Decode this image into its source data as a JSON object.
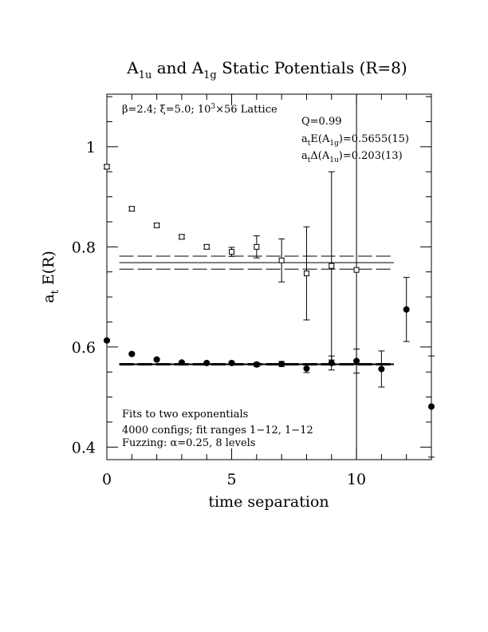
{
  "chart_data": {
    "type": "scatter",
    "title": "A1u and A1g Static Potentials (R=8)",
    "title_parts": {
      "a1": "A",
      "s1": "1u",
      "mid": " and A",
      "s2": "1g",
      "rest": " Static Potentials (R=8)"
    },
    "xlabel": "time separation",
    "ylabel": "a_t E(R)",
    "ylabel_parts": {
      "a": "a",
      "sub": "t",
      "rest": " E(R)"
    },
    "xlim": [
      0,
      13
    ],
    "ylim": [
      0.375,
      1.105
    ],
    "x_major_ticks": [
      0,
      5,
      10
    ],
    "x_tick_labels": [
      "0",
      "5",
      "10"
    ],
    "y_major_ticks": [
      0.4,
      0.6,
      0.8,
      1.0
    ],
    "y_tick_labels": [
      "0.4",
      "0.6",
      "0.8",
      "1"
    ],
    "grid": false,
    "legend": "none",
    "series": [
      {
        "marker": "open-square",
        "points": [
          {
            "x": 0,
            "y": 0.96,
            "err": 0.004
          },
          {
            "x": 1,
            "y": 0.876,
            "err": 0.004
          },
          {
            "x": 2,
            "y": 0.843,
            "err": 0.004
          },
          {
            "x": 3,
            "y": 0.82,
            "err": 0.004
          },
          {
            "x": 4,
            "y": 0.8,
            "err": 0.004
          },
          {
            "x": 5,
            "y": 0.79,
            "err": 0.009
          },
          {
            "x": 6,
            "y": 0.8,
            "err": 0.022
          },
          {
            "x": 7,
            "y": 0.773,
            "err": 0.043
          },
          {
            "x": 8,
            "y": 0.747,
            "err": 0.093
          },
          {
            "x": 9,
            "y": 0.762,
            "err": 0.188
          },
          {
            "x": 10,
            "y": 0.754,
            "err": 0.4
          }
        ]
      },
      {
        "marker": "filled-circle",
        "points": [
          {
            "x": 0,
            "y": 0.613,
            "err": 0.002
          },
          {
            "x": 1,
            "y": 0.586,
            "err": 0.002
          },
          {
            "x": 2,
            "y": 0.575,
            "err": 0.002
          },
          {
            "x": 3,
            "y": 0.569,
            "err": 0.002
          },
          {
            "x": 4,
            "y": 0.568,
            "err": 0.002
          },
          {
            "x": 5,
            "y": 0.568,
            "err": 0.003
          },
          {
            "x": 6,
            "y": 0.565,
            "err": 0.004
          },
          {
            "x": 7,
            "y": 0.566,
            "err": 0.005
          },
          {
            "x": 8,
            "y": 0.557,
            "err": 0.008
          },
          {
            "x": 9,
            "y": 0.568,
            "err": 0.014
          },
          {
            "x": 10,
            "y": 0.572,
            "err": 0.024
          },
          {
            "x": 11,
            "y": 0.556,
            "err": 0.036
          },
          {
            "x": 12,
            "y": 0.675,
            "err": 0.064
          },
          {
            "x": 13,
            "y": 0.481,
            "err": 0.101
          }
        ]
      }
    ],
    "fit_lines": [
      {
        "y": 0.5655,
        "x_from": 0.5,
        "x_to": 11.5,
        "style": "solid-thick"
      },
      {
        "y": 0.5655,
        "x_from": 0.5,
        "x_to": 11.5,
        "style": "dashed-thick"
      },
      {
        "y": 0.7685,
        "x_from": 0.5,
        "x_to": 11.5,
        "style": "solid"
      },
      {
        "y": 0.7815,
        "x_from": 0.5,
        "x_to": 11.5,
        "style": "dashed"
      },
      {
        "y": 0.7555,
        "x_from": 0.5,
        "x_to": 11.5,
        "style": "dashed"
      }
    ],
    "annotations": {
      "lattice": {
        "beta": "β",
        "t1": "=2.4; ",
        "xi": "ξ",
        "t2": "=5.0; 10",
        "sup": "3",
        "t3": "×56 Lattice"
      },
      "q": "Q=0.99",
      "e_line": {
        "a": "a",
        "sub": "t",
        "mid": "E(A",
        "sub2": "1g",
        "rest": ")=0.5655(15)"
      },
      "d_line": {
        "a": "a",
        "sub": "t",
        "mid": "Δ(A",
        "sub2": "1u",
        "rest": ")=0.203(13)"
      },
      "fits": "Fits to two exponentials",
      "configs": "4000 configs; fit ranges 1−12, 1−12",
      "fuzzing": {
        "pre": "Fuzzing: ",
        "alpha": "α",
        "post": "=0.25, 8 levels"
      }
    }
  }
}
